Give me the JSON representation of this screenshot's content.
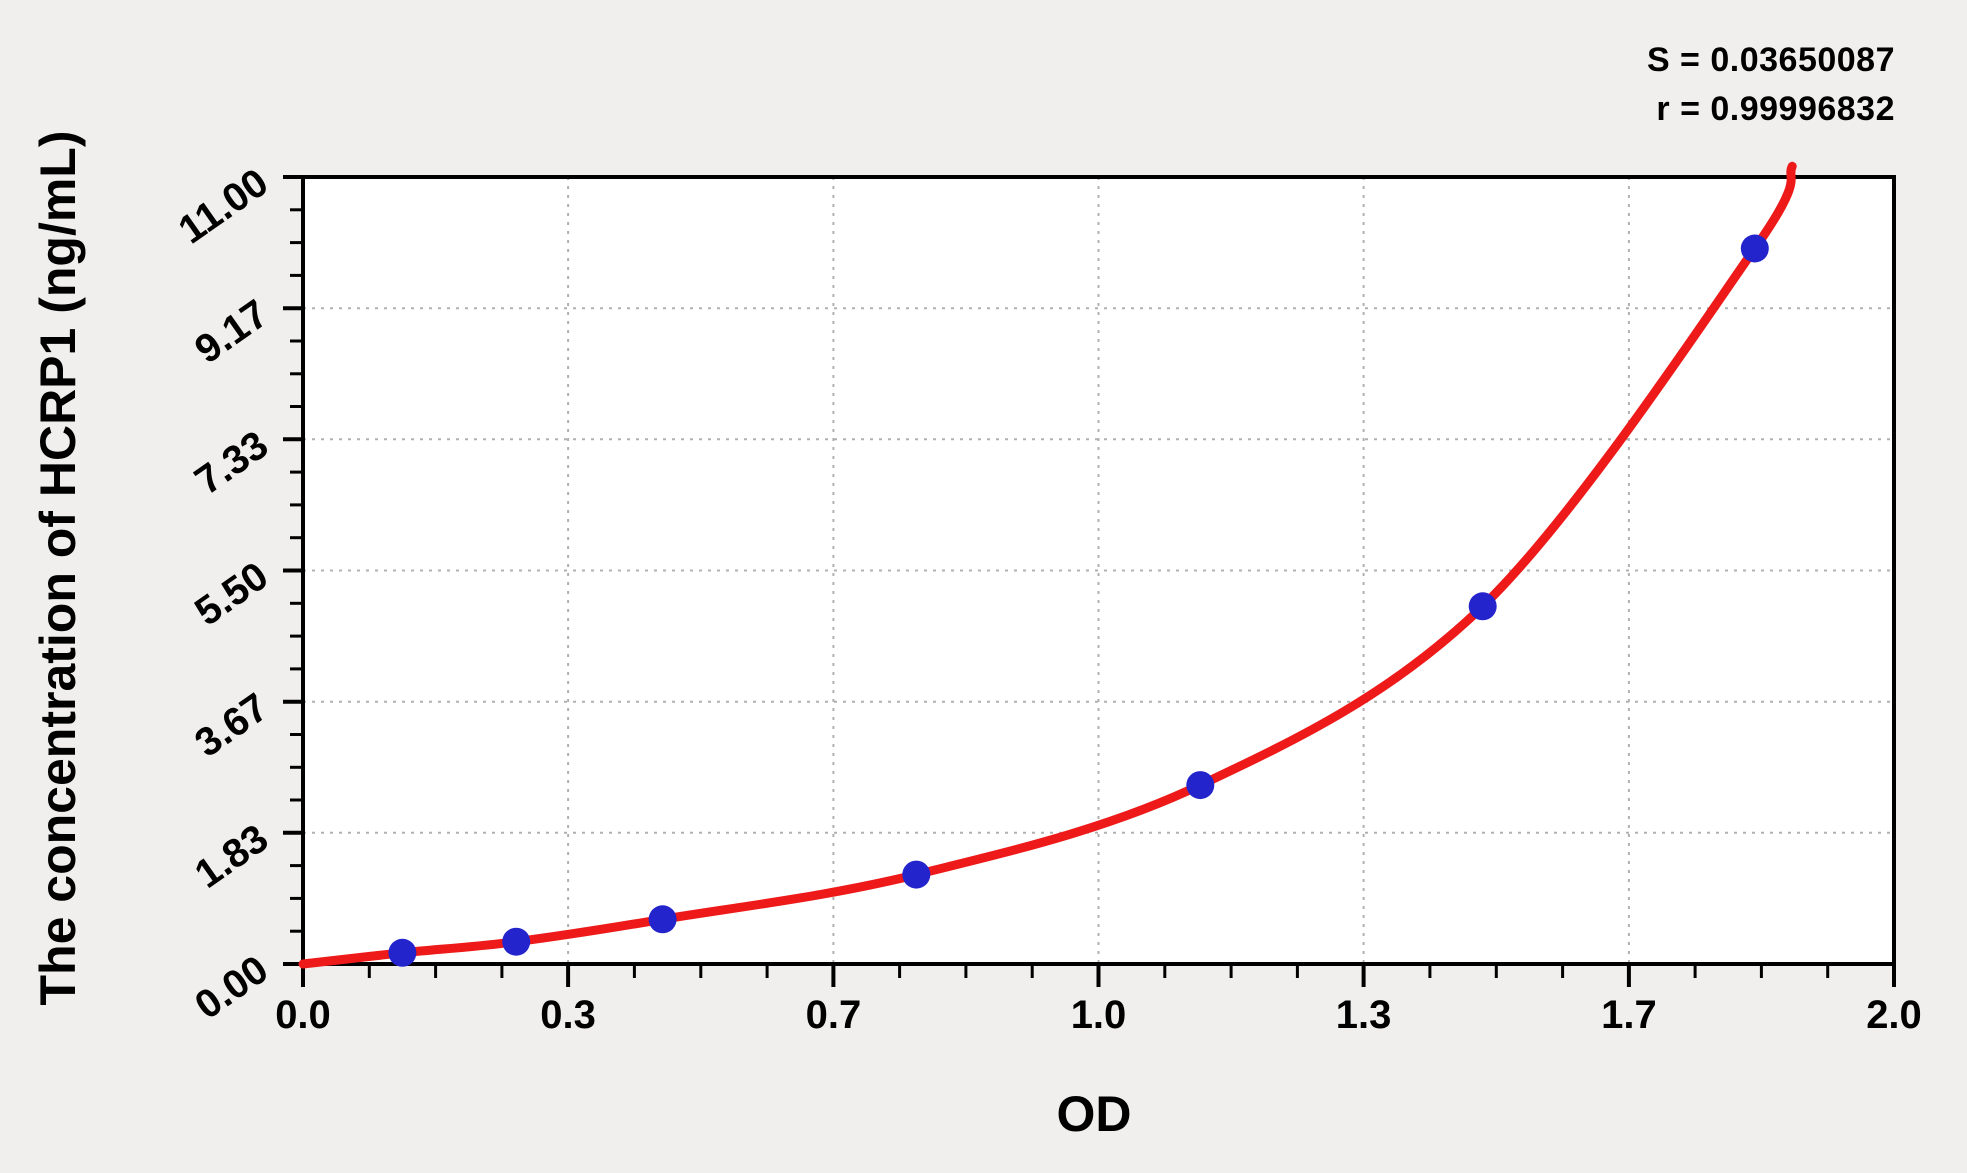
{
  "page": {
    "background": "#f0efed"
  },
  "annotations": {
    "s_line": "S = 0.03650087",
    "r_line": "r = 0.99996832"
  },
  "chart_data": {
    "type": "scatter",
    "title": "",
    "xlabel": "OD",
    "ylabel": "The concentration of HCRP1 (ng/mL)",
    "xlim": [
      0,
      2
    ],
    "ylim": [
      0,
      11
    ],
    "x_tick_labels": [
      "0.0",
      "0.3",
      "0.7",
      "1.0",
      "1.3",
      "1.7",
      "2.0"
    ],
    "x_tick_values": [
      0,
      0.3333,
      0.6667,
      1.0,
      1.3333,
      1.6667,
      2.0
    ],
    "y_tick_labels": [
      "0.00",
      "1.83",
      "3.67",
      "5.50",
      "7.33",
      "9.17",
      "11.00"
    ],
    "y_tick_values": [
      0,
      1.8333,
      3.6667,
      5.5,
      7.3333,
      9.1667,
      11.0
    ],
    "minor_ticks_per_major_interval": 3,
    "grid": "dashed at major ticks",
    "legend_position": "none",
    "series": [
      {
        "name": "standard-points",
        "type": "scatter",
        "color": "#2424cc",
        "points": [
          [
            0.125,
            0.156
          ],
          [
            0.268,
            0.312
          ],
          [
            0.452,
            0.625
          ],
          [
            0.771,
            1.25
          ],
          [
            1.128,
            2.5
          ],
          [
            1.483,
            5.0
          ],
          [
            1.825,
            10.0
          ]
        ]
      },
      {
        "name": "fitted-curve",
        "type": "line",
        "color": "#ee1a1a",
        "points": [
          [
            0,
            0
          ],
          [
            0.125,
            0.156
          ],
          [
            0.268,
            0.312
          ],
          [
            0.452,
            0.625
          ],
          [
            0.771,
            1.25
          ],
          [
            1.128,
            2.5
          ],
          [
            1.483,
            5.0
          ],
          [
            1.825,
            10.0
          ],
          [
            1.872,
            11.15
          ]
        ]
      }
    ],
    "colors": {
      "curve": "#ee1a1a",
      "point": "#2424cc",
      "grid": "#b0b0b0",
      "axis": "#000000",
      "plot_bg": "#ffffff"
    }
  }
}
